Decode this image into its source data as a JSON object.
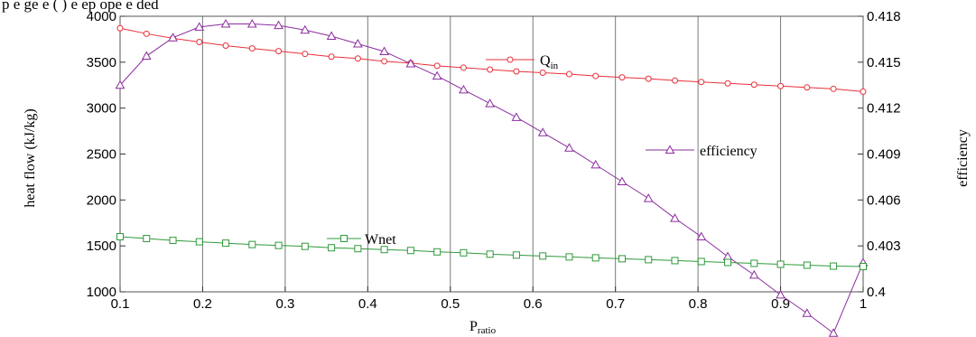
{
  "caption_fragment": "p       e      ge  e   ( ) e ep ope    e   ded      ",
  "chart_data": {
    "type": "line",
    "xlabel": "P",
    "xlabel_sub": "ratio",
    "ylabel": "heat flow (kJ/kg)",
    "y2label": "efficiency",
    "xlim": [
      0.1,
      1.0
    ],
    "ylim": [
      1000,
      4000
    ],
    "y2lim": [
      0.4,
      0.418
    ],
    "xticks": [
      "0.1",
      "0.2",
      "0.3",
      "0.4",
      "0.5",
      "0.6",
      "0.7",
      "0.8",
      "0.9",
      "1"
    ],
    "yticks": [
      "1000",
      "1500",
      "2000",
      "2500",
      "3000",
      "3500",
      "4000"
    ],
    "y2ticks": [
      "0.4",
      "0.403",
      "0.406",
      "0.409",
      "0.412",
      "0.415",
      "0.418"
    ],
    "grid": "vertical",
    "x": [
      0.1,
      0.132,
      0.164,
      0.196,
      0.228,
      0.26,
      0.292,
      0.324,
      0.356,
      0.388,
      0.42,
      0.452,
      0.484,
      0.516,
      0.548,
      0.58,
      0.612,
      0.644,
      0.676,
      0.708,
      0.74,
      0.772,
      0.804,
      0.836,
      0.868,
      0.9,
      0.932,
      0.964,
      1.0
    ],
    "series": [
      {
        "name": "Q",
        "name_sub": "in",
        "axis": "left",
        "color": "#e8303a",
        "marker": "circle",
        "values": [
          3870,
          3810,
          3760,
          3720,
          3680,
          3650,
          3620,
          3590,
          3560,
          3540,
          3510,
          3490,
          3460,
          3440,
          3420,
          3400,
          3385,
          3370,
          3350,
          3335,
          3320,
          3300,
          3285,
          3270,
          3255,
          3240,
          3225,
          3210,
          3180
        ]
      },
      {
        "name": "efficiency",
        "axis": "right",
        "color": "#8b2c9e",
        "marker": "triangle",
        "values": [
          0.4135,
          0.4154,
          0.4166,
          0.4173,
          0.4175,
          0.4175,
          0.4174,
          0.4171,
          0.4167,
          0.4162,
          0.4157,
          0.4149,
          0.4141,
          0.4132,
          0.4123,
          0.4114,
          0.4104,
          0.4094,
          0.4083,
          0.4072,
          0.4061,
          0.4048,
          0.4036,
          0.4023,
          0.4011,
          0.3998,
          0.3986,
          0.3973,
          0.4019
        ]
      },
      {
        "name": "Wnet",
        "axis": "left",
        "color": "#2f9a3a",
        "marker": "square",
        "values": [
          1600,
          1580,
          1560,
          1545,
          1530,
          1515,
          1505,
          1495,
          1480,
          1470,
          1460,
          1450,
          1435,
          1425,
          1410,
          1400,
          1390,
          1380,
          1370,
          1360,
          1350,
          1340,
          1330,
          1320,
          1310,
          1300,
          1290,
          1280,
          1275
        ]
      }
    ],
    "legend": "inline labels"
  }
}
